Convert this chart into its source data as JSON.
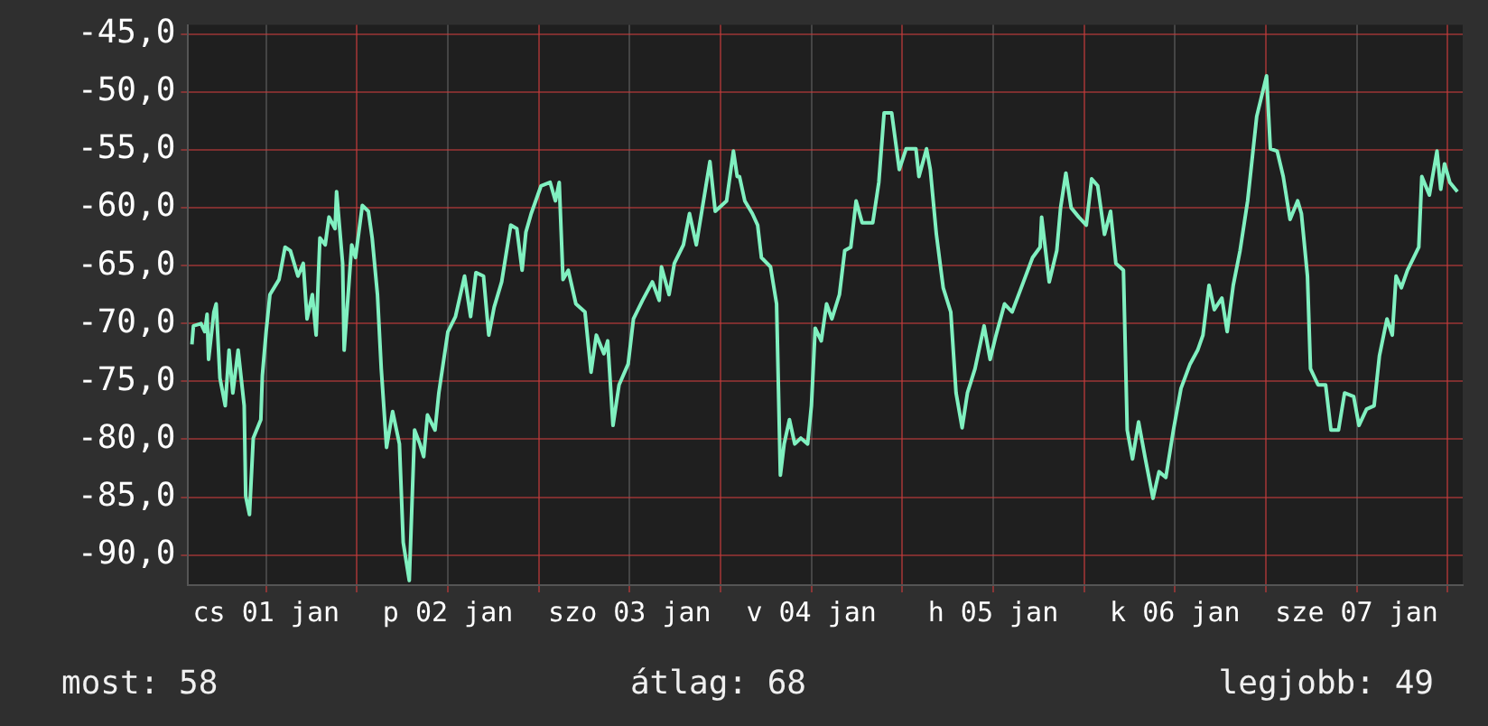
{
  "chart_data": {
    "type": "line",
    "xlim": [
      "--01-01T01:42",
      "--01-08T02:00"
    ],
    "ylim": [
      -92.6,
      -44.2
    ],
    "xticks": [
      {
        "value": "--01-01T12:00",
        "label": "cs 01 jan"
      },
      {
        "value": "--01-02T00:00",
        "label": null
      },
      {
        "value": "--01-02T12:00",
        "label": "p 02 jan"
      },
      {
        "value": "--01-03T00:00",
        "label": null
      },
      {
        "value": "--01-03T12:00",
        "label": "szo 03 jan"
      },
      {
        "value": "--01-04T00:00",
        "label": null
      },
      {
        "value": "--01-04T12:00",
        "label": "v 04 jan"
      },
      {
        "value": "--01-05T00:00",
        "label": null
      },
      {
        "value": "--01-05T12:00",
        "label": "h 05 jan"
      },
      {
        "value": "--01-06T00:00",
        "label": null
      },
      {
        "value": "--01-06T12:00",
        "label": "k 06 jan"
      },
      {
        "value": "--01-07T00:00",
        "label": null
      },
      {
        "value": "--01-07T12:00",
        "label": "sze 07 jan"
      },
      {
        "value": "--01-08T00:00",
        "label": null
      }
    ],
    "yticks": [
      {
        "value": -90,
        "label": "-90,0"
      },
      {
        "value": -85,
        "label": "-85,0"
      },
      {
        "value": -80,
        "label": "-80,0"
      },
      {
        "value": -75,
        "label": "-75,0"
      },
      {
        "value": -70,
        "label": "-70,0"
      },
      {
        "value": -65,
        "label": "-65,0"
      },
      {
        "value": -60,
        "label": "-60,0"
      },
      {
        "value": -55,
        "label": "-55,0"
      },
      {
        "value": -50,
        "label": "-50,0"
      },
      {
        "value": -45,
        "label": "-45,0"
      }
    ],
    "grid": true,
    "legend": false,
    "marker": "none",
    "line_style": "solid",
    "annotations": [
      "most: 58",
      "átlag: 68",
      "legjobb: 49"
    ],
    "series": [
      {
        "color": "#80f0c0",
        "x": [
          "--01-01T02:12",
          "--01-01T02:24",
          "--01-01T03:24",
          "--01-01T03:54",
          "--01-01T04:12",
          "--01-01T04:24",
          "--01-01T05:06",
          "--01-01T05:24",
          "--01-01T05:54",
          "--01-01T06:36",
          "--01-01T07:06",
          "--01-01T07:36",
          "--01-01T08:18",
          "--01-01T09:06",
          "--01-01T09:18",
          "--01-01T09:48",
          "--01-01T10:18",
          "--01-01T11:18",
          "--01-01T11:30",
          "--01-01T12:00",
          "--01-01T12:30",
          "--01-01T13:42",
          "--01-01T14:30",
          "--01-01T15:12",
          "--01-01T16:12",
          "--01-01T16:54",
          "--01-01T17:24",
          "--01-01T18:06",
          "--01-01T18:36",
          "--01-01T19:06",
          "--01-01T19:48",
          "--01-01T20:18",
          "--01-01T21:06",
          "--01-01T21:18",
          "--01-01T22:06",
          "--01-01T22:18",
          "--01-01T23:18",
          "--01-01T23:48",
          "--01-02T00:42",
          "--01-02T01:30",
          "--01-02T02:00",
          "--01-02T02:42",
          "--01-02T03:12",
          "--01-02T03:54",
          "--01-02T04:42",
          "--01-02T05:36",
          "--01-02T06:06",
          "--01-02T06:54",
          "--01-02T07:36",
          "--01-02T08:18",
          "--01-02T08:48",
          "--01-02T09:18",
          "--01-02T10:18",
          "--01-02T10:48",
          "--01-02T12:00",
          "--01-02T13:00",
          "--01-02T14:12",
          "--01-02T15:00",
          "--01-02T15:42",
          "--01-02T16:42",
          "--01-02T17:24",
          "--01-02T18:06",
          "--01-02T19:06",
          "--01-02T20:18",
          "--01-02T21:06",
          "--01-02T21:48",
          "--01-02T22:18",
          "--01-02T23:00",
          "--01-03T00:18",
          "--01-03T01:30",
          "--01-03T02:12",
          "--01-03T02:42",
          "--01-03T03:12",
          "--01-03T03:54",
          "--01-03T04:54",
          "--01-03T06:06",
          "--01-03T06:54",
          "--01-03T07:36",
          "--01-03T08:36",
          "--01-03T09:06",
          "--01-03T09:48",
          "--01-03T10:36",
          "--01-03T11:48",
          "--01-03T12:30",
          "--01-03T13:42",
          "--01-03T15:00",
          "--01-03T15:54",
          "--01-03T16:12",
          "--01-03T17:12",
          "--01-03T17:54",
          "--01-03T19:06",
          "--01-03T19:54",
          "--01-03T20:48",
          "--01-03T21:36",
          "--01-03T22:36",
          "--01-03T23:18",
          "--01-04T00:48",
          "--01-04T01:42",
          "--01-04T02:12",
          "--01-04T02:30",
          "--01-04T03:12",
          "--01-04T04:12",
          "--01-04T04:54",
          "--01-04T05:24",
          "--01-04T06:36",
          "--01-04T07:24",
          "--01-04T07:54",
          "--01-04T08:24",
          "--01-04T09:06",
          "--01-04T09:48",
          "--01-04T10:36",
          "--01-04T11:30",
          "--01-04T12:00",
          "--01-04T12:30",
          "--01-04T13:18",
          "--01-04T14:00",
          "--01-04T14:42",
          "--01-04T15:42",
          "--01-04T16:24",
          "--01-04T17:12",
          "--01-04T17:54",
          "--01-04T18:42",
          "--01-04T20:06",
          "--01-04T20:54",
          "--01-04T21:36",
          "--01-04T22:36",
          "--01-04T23:36",
          "--01-05T00:30",
          "--01-05T01:48",
          "--01-05T02:12",
          "--01-05T03:12",
          "--01-05T03:42",
          "--01-05T04:30",
          "--01-05T05:24",
          "--01-05T06:24",
          "--01-05T07:06",
          "--01-05T07:54",
          "--01-05T08:36",
          "--01-05T09:36",
          "--01-05T10:48",
          "--01-05T11:36",
          "--01-05T12:18",
          "--01-05T13:30",
          "--01-05T14:30",
          "--01-05T16:00",
          "--01-05T17:12",
          "--01-05T18:12",
          "--01-05T18:24",
          "--01-05T19:24",
          "--01-05T20:24",
          "--01-05T20:54",
          "--01-05T21:36",
          "--01-05T22:18",
          "--01-05T23:18",
          "--01-06T00:18",
          "--01-06T01:00",
          "--01-06T01:48",
          "--01-06T02:42",
          "--01-06T03:30",
          "--01-06T04:12",
          "--01-06T05:12",
          "--01-06T05:42",
          "--01-06T06:24",
          "--01-06T07:12",
          "--01-06T08:06",
          "--01-06T09:06",
          "--01-06T09:54",
          "--01-06T10:48",
          "--01-06T11:48",
          "--01-06T12:48",
          "--01-06T14:00",
          "--01-06T15:00",
          "--01-06T15:42",
          "--01-06T16:30",
          "--01-06T17:12",
          "--01-06T18:12",
          "--01-06T18:54",
          "--01-06T19:42",
          "--01-06T20:36",
          "--01-06T21:36",
          "--01-06T22:48",
          "--01-07T00:06",
          "--01-07T00:36",
          "--01-07T01:30",
          "--01-07T02:18",
          "--01-07T03:12",
          "--01-07T04:12",
          "--01-07T04:42",
          "--01-07T05:30",
          "--01-07T05:54",
          "--01-07T06:54",
          "--01-07T07:54",
          "--01-07T08:36",
          "--01-07T09:36",
          "--01-07T10:24",
          "--01-07T11:36",
          "--01-07T12:18",
          "--01-07T13:18",
          "--01-07T14:18",
          "--01-07T15:00",
          "--01-07T16:00",
          "--01-07T16:42",
          "--01-07T17:12",
          "--01-07T17:54",
          "--01-07T18:42",
          "--01-07T20:12",
          "--01-07T20:36",
          "--01-07T21:36",
          "--01-07T22:36",
          "--01-07T23:06",
          "--01-07T23:36",
          "--01-08T00:18",
          "--01-08T01:18"
        ],
        "values": [
          -71.8,
          -70.2,
          -70,
          -70.7,
          -69.2,
          -73.1,
          -69,
          -68.3,
          -74.7,
          -77.1,
          -72.3,
          -76,
          -72.3,
          -77.1,
          -84.9,
          -86.5,
          -79.9,
          -78.3,
          -74.5,
          -70.7,
          -67.5,
          -66.2,
          -63.4,
          -63.7,
          -65.9,
          -64.8,
          -69.6,
          -67.5,
          -71,
          -62.6,
          -63.2,
          -60.8,
          -61.8,
          -58.6,
          -64.8,
          -72.3,
          -63.2,
          -64.3,
          -59.8,
          -60.3,
          -62.6,
          -67.5,
          -73.9,
          -80.7,
          -77.6,
          -80.4,
          -88.9,
          -92.2,
          -79.2,
          -80.4,
          -81.5,
          -77.9,
          -79.2,
          -76,
          -70.7,
          -69.4,
          -65.9,
          -69.4,
          -65.6,
          -65.9,
          -71,
          -68.6,
          -66.4,
          -61.5,
          -61.8,
          -65.4,
          -62.1,
          -60.5,
          -58.1,
          -57.8,
          -59.4,
          -57.8,
          -66.2,
          -65.4,
          -68.3,
          -69,
          -74.2,
          -71,
          -72.6,
          -71.5,
          -78.8,
          -75.3,
          -73.5,
          -69.6,
          -68,
          -66.4,
          -68,
          -65.1,
          -67.5,
          -64.8,
          -63.2,
          -60.5,
          -63.2,
          -60,
          -56,
          -60.3,
          -59.4,
          -55.1,
          -57.3,
          -57.3,
          -59.4,
          -60.5,
          -61.5,
          -64.3,
          -65.1,
          -68.3,
          -83.1,
          -80.4,
          -78.3,
          -80.4,
          -79.9,
          -80.4,
          -77.1,
          -70.4,
          -71.5,
          -68.3,
          -69.6,
          -67.5,
          -63.7,
          -63.4,
          -59.4,
          -61.3,
          -61.3,
          -57.8,
          -51.8,
          -51.8,
          -56.7,
          -54.9,
          -54.9,
          -57.3,
          -54.9,
          -56.7,
          -62.3,
          -66.9,
          -69,
          -76,
          -79,
          -76,
          -73.9,
          -70.2,
          -73.1,
          -71.2,
          -68.3,
          -69,
          -66.4,
          -64.3,
          -63.4,
          -60.8,
          -66.4,
          -63.7,
          -60,
          -57,
          -60,
          -60.8,
          -61.5,
          -57.5,
          -58.1,
          -62.3,
          -60.3,
          -64.8,
          -65.4,
          -79.2,
          -81.7,
          -78.5,
          -81.7,
          -85.1,
          -82.8,
          -83.3,
          -79.2,
          -75.6,
          -73.5,
          -72.3,
          -71,
          -66.7,
          -68.8,
          -67.8,
          -70.7,
          -66.7,
          -63.7,
          -59.4,
          -52.1,
          -48.6,
          -54.9,
          -55.1,
          -57.3,
          -61,
          -59.4,
          -60.5,
          -65.9,
          -73.9,
          -75.3,
          -75.3,
          -79.2,
          -79.2,
          -76,
          -76.3,
          -78.8,
          -77.4,
          -77.1,
          -72.8,
          -69.6,
          -71,
          -65.9,
          -66.9,
          -65.4,
          -63.4,
          -57.3,
          -58.9,
          -55.1,
          -58.4,
          -56.2,
          -57.8,
          -58.6
        ]
      }
    ]
  }
}
